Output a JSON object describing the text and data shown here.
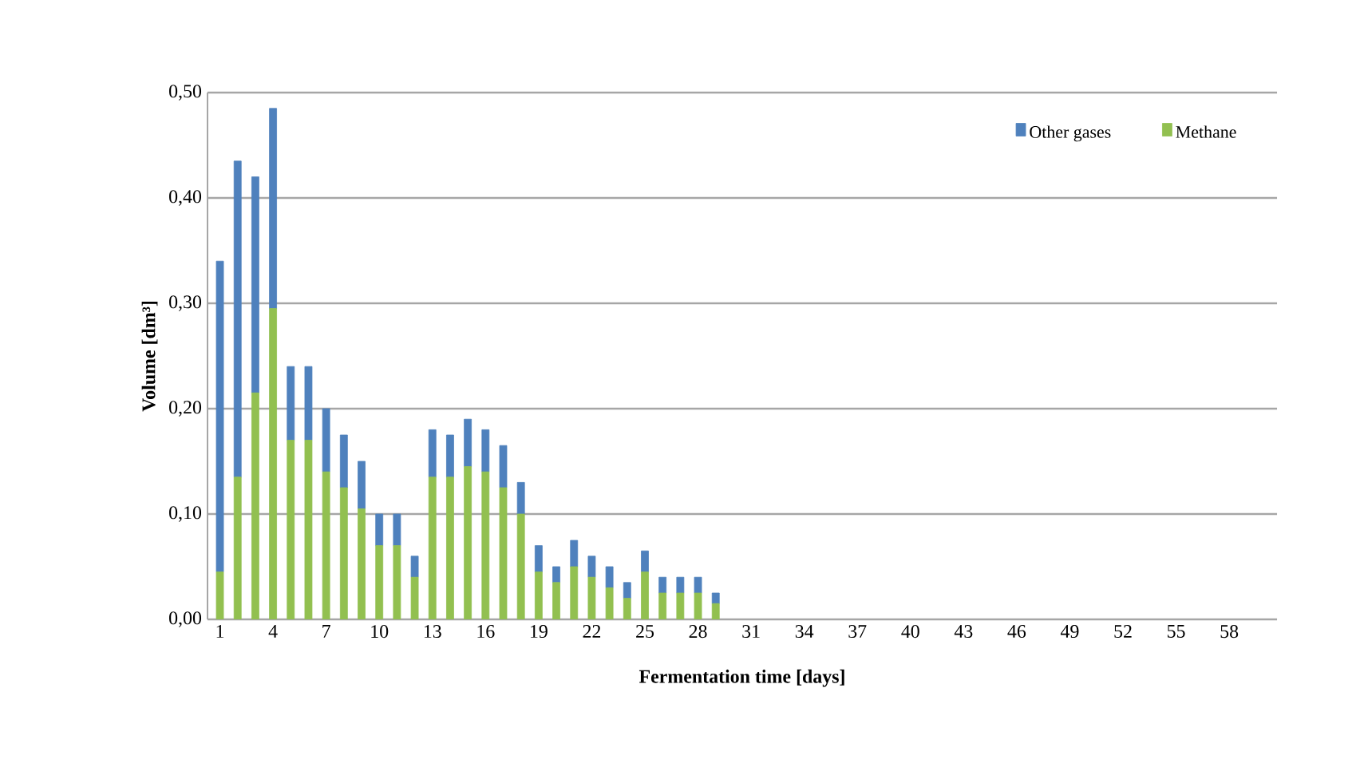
{
  "chart_data": {
    "type": "bar",
    "stacked": true,
    "xlabel": "Fermentation time [days]",
    "ylabel": "Volume  [dm³]",
    "categories": [
      "1",
      null,
      null,
      "4",
      null,
      null,
      "7",
      null,
      null,
      "10",
      null,
      null,
      "13",
      null,
      null,
      "16",
      null,
      null,
      "19",
      null,
      null,
      "22",
      null,
      null,
      "25",
      null,
      null,
      "28",
      null,
      null,
      "31",
      null,
      null,
      "34",
      null,
      null,
      "37",
      null,
      null,
      "40",
      null,
      null,
      "43",
      null,
      null,
      "46",
      null,
      null,
      "49",
      null,
      null,
      "52",
      null,
      null,
      "55",
      null,
      null,
      "58",
      null,
      null
    ],
    "series": [
      {
        "name": "Methane",
        "color": "#92c050",
        "values": [
          0.045,
          0.135,
          0.215,
          0.295,
          0.17,
          0.17,
          0.14,
          0.125,
          0.105,
          0.07,
          0.07,
          0.04,
          0.135,
          0.135,
          0.145,
          0.14,
          0.125,
          0.1,
          0.045,
          0.035,
          0.05,
          0.04,
          0.03,
          0.02,
          0.045,
          0.025,
          0.025,
          0.025,
          0.015,
          0,
          0,
          0,
          0,
          0,
          0,
          0,
          0,
          0,
          0,
          0,
          0,
          0,
          0,
          0,
          0,
          0,
          0,
          0,
          0,
          0,
          0,
          0,
          0,
          0,
          0,
          0,
          0,
          0,
          0,
          0
        ]
      },
      {
        "name": "Other gases",
        "color": "#4f81bd",
        "values": [
          0.295,
          0.3,
          0.205,
          0.19,
          0.07,
          0.07,
          0.06,
          0.05,
          0.045,
          0.03,
          0.03,
          0.02,
          0.045,
          0.04,
          0.045,
          0.04,
          0.04,
          0.03,
          0.025,
          0.015,
          0.025,
          0.02,
          0.02,
          0.015,
          0.02,
          0.015,
          0.015,
          0.015,
          0.01,
          0,
          0,
          0,
          0,
          0,
          0,
          0,
          0,
          0,
          0,
          0,
          0,
          0,
          0,
          0,
          0,
          0,
          0,
          0,
          0,
          0,
          0,
          0,
          0,
          0,
          0,
          0,
          0,
          0,
          0,
          0
        ]
      }
    ],
    "ylim": [
      0,
      0.5
    ],
    "yticks": [
      {
        "value": 0,
        "label": "0,00"
      },
      {
        "value": 0.1,
        "label": "0,10"
      },
      {
        "value": 0.2,
        "label": "0,20"
      },
      {
        "value": 0.3,
        "label": "0,30"
      },
      {
        "value": 0.4,
        "label": "0,40"
      },
      {
        "value": 0.5,
        "label": "0,50"
      }
    ],
    "grid": "y",
    "legend": "top right"
  }
}
